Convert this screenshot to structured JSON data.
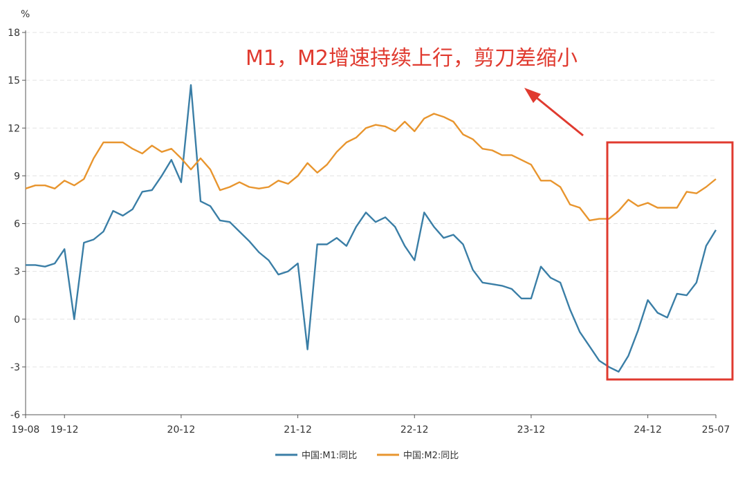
{
  "chart_data": {
    "type": "line",
    "ylabel": "%",
    "ylim": [
      -6,
      18
    ],
    "yticks": [
      "-6",
      "-3",
      "0",
      "3",
      "6",
      "9",
      "12",
      "15",
      "18"
    ],
    "grid": "horizontal dashed",
    "x_start": "2019-08",
    "x_end": "2025-07",
    "xticks": [
      "19-08",
      "19-12",
      "20-12",
      "21-12",
      "22-12",
      "23-12",
      "24-12",
      "25-07"
    ],
    "legend_position": "bottom",
    "annotation": "M1，M2增速持续上行，剪刀差缩小",
    "series": [
      {
        "name": "中国:M1:同比",
        "color": "#3a7ea6",
        "values": [
          3.4,
          3.4,
          3.3,
          3.5,
          4.4,
          0.0,
          4.8,
          5.0,
          5.5,
          6.8,
          6.5,
          6.9,
          8.0,
          8.1,
          9.0,
          10.0,
          8.6,
          14.7,
          7.4,
          7.1,
          6.2,
          6.1,
          5.5,
          4.9,
          4.2,
          3.7,
          2.8,
          3.0,
          3.5,
          -1.9,
          4.7,
          4.7,
          5.1,
          4.6,
          5.8,
          6.7,
          6.1,
          6.4,
          5.8,
          4.6,
          3.7,
          6.7,
          5.8,
          5.1,
          5.3,
          4.7,
          3.1,
          2.3,
          2.2,
          2.1,
          1.9,
          1.3,
          1.3,
          3.3,
          2.6,
          2.3,
          0.6,
          -0.8,
          -1.7,
          -2.6,
          -3.0,
          -3.3,
          -2.3,
          -0.7,
          1.2,
          0.4,
          0.1,
          1.6,
          1.5,
          2.3,
          4.6,
          5.6
        ]
      },
      {
        "name": "中国:M2:同比",
        "color": "#e8952e",
        "values": [
          8.2,
          8.4,
          8.4,
          8.2,
          8.7,
          8.4,
          8.8,
          10.1,
          11.1,
          11.1,
          11.1,
          10.7,
          10.4,
          10.9,
          10.5,
          10.7,
          10.1,
          9.4,
          10.1,
          9.4,
          8.1,
          8.3,
          8.6,
          8.3,
          8.2,
          8.3,
          8.7,
          8.5,
          9.0,
          9.8,
          9.2,
          9.7,
          10.5,
          11.1,
          11.4,
          12.0,
          12.2,
          12.1,
          11.8,
          12.4,
          11.8,
          12.6,
          12.9,
          12.7,
          12.4,
          11.6,
          11.3,
          10.7,
          10.6,
          10.3,
          10.3,
          10.0,
          9.7,
          8.7,
          8.7,
          8.3,
          7.2,
          7.0,
          6.2,
          6.3,
          6.3,
          6.8,
          7.5,
          7.1,
          7.3,
          7.0,
          7.0,
          7.0,
          8.0,
          7.9,
          8.3,
          8.8
        ]
      }
    ]
  }
}
